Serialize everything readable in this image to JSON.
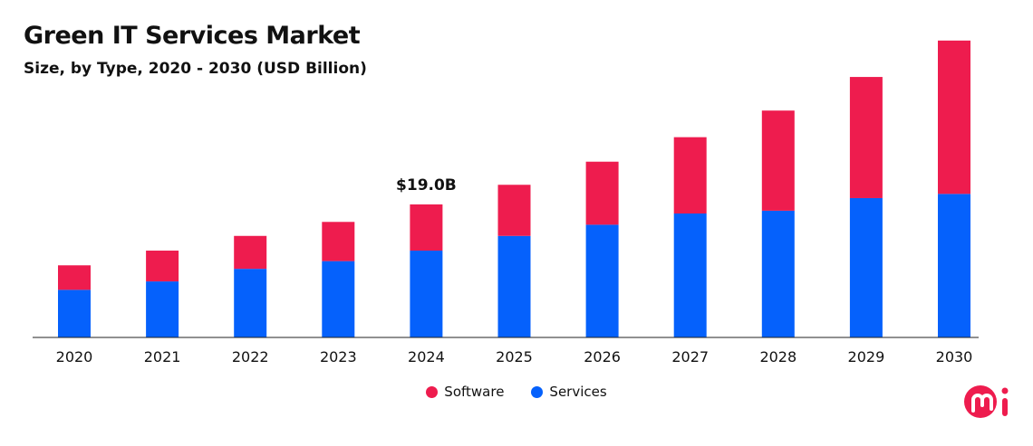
{
  "chart_data": {
    "type": "bar",
    "stacked": true,
    "title": "Green IT Services Market",
    "subtitle": "Size, by Type, 2020 - 2030 (USD Billion)",
    "categories": [
      "2020",
      "2021",
      "2022",
      "2023",
      "2024",
      "2025",
      "2026",
      "2027",
      "2028",
      "2029",
      "2030"
    ],
    "series": [
      {
        "name": "Services",
        "color": "#0561FC",
        "values": [
          6.8,
          8.0,
          9.8,
          10.9,
          12.4,
          14.5,
          16.1,
          17.7,
          18.1,
          19.9,
          20.5
        ]
      },
      {
        "name": "Software",
        "color": "#EE1C4E",
        "values": [
          3.5,
          4.4,
          4.7,
          5.6,
          6.6,
          7.3,
          9.0,
          10.9,
          14.3,
          17.3,
          21.9
        ]
      }
    ],
    "annotations": [
      {
        "category": "2024",
        "label": "$19.0B"
      }
    ],
    "ylim": [
      0,
      43
    ],
    "grid": false,
    "legend_position": "bottom"
  },
  "legend": {
    "items": [
      {
        "label": "Software",
        "color": "#EE1C4E"
      },
      {
        "label": "Services",
        "color": "#0561FC"
      }
    ]
  },
  "logo": {
    "text": "mi",
    "color": "#EE1C4E"
  }
}
